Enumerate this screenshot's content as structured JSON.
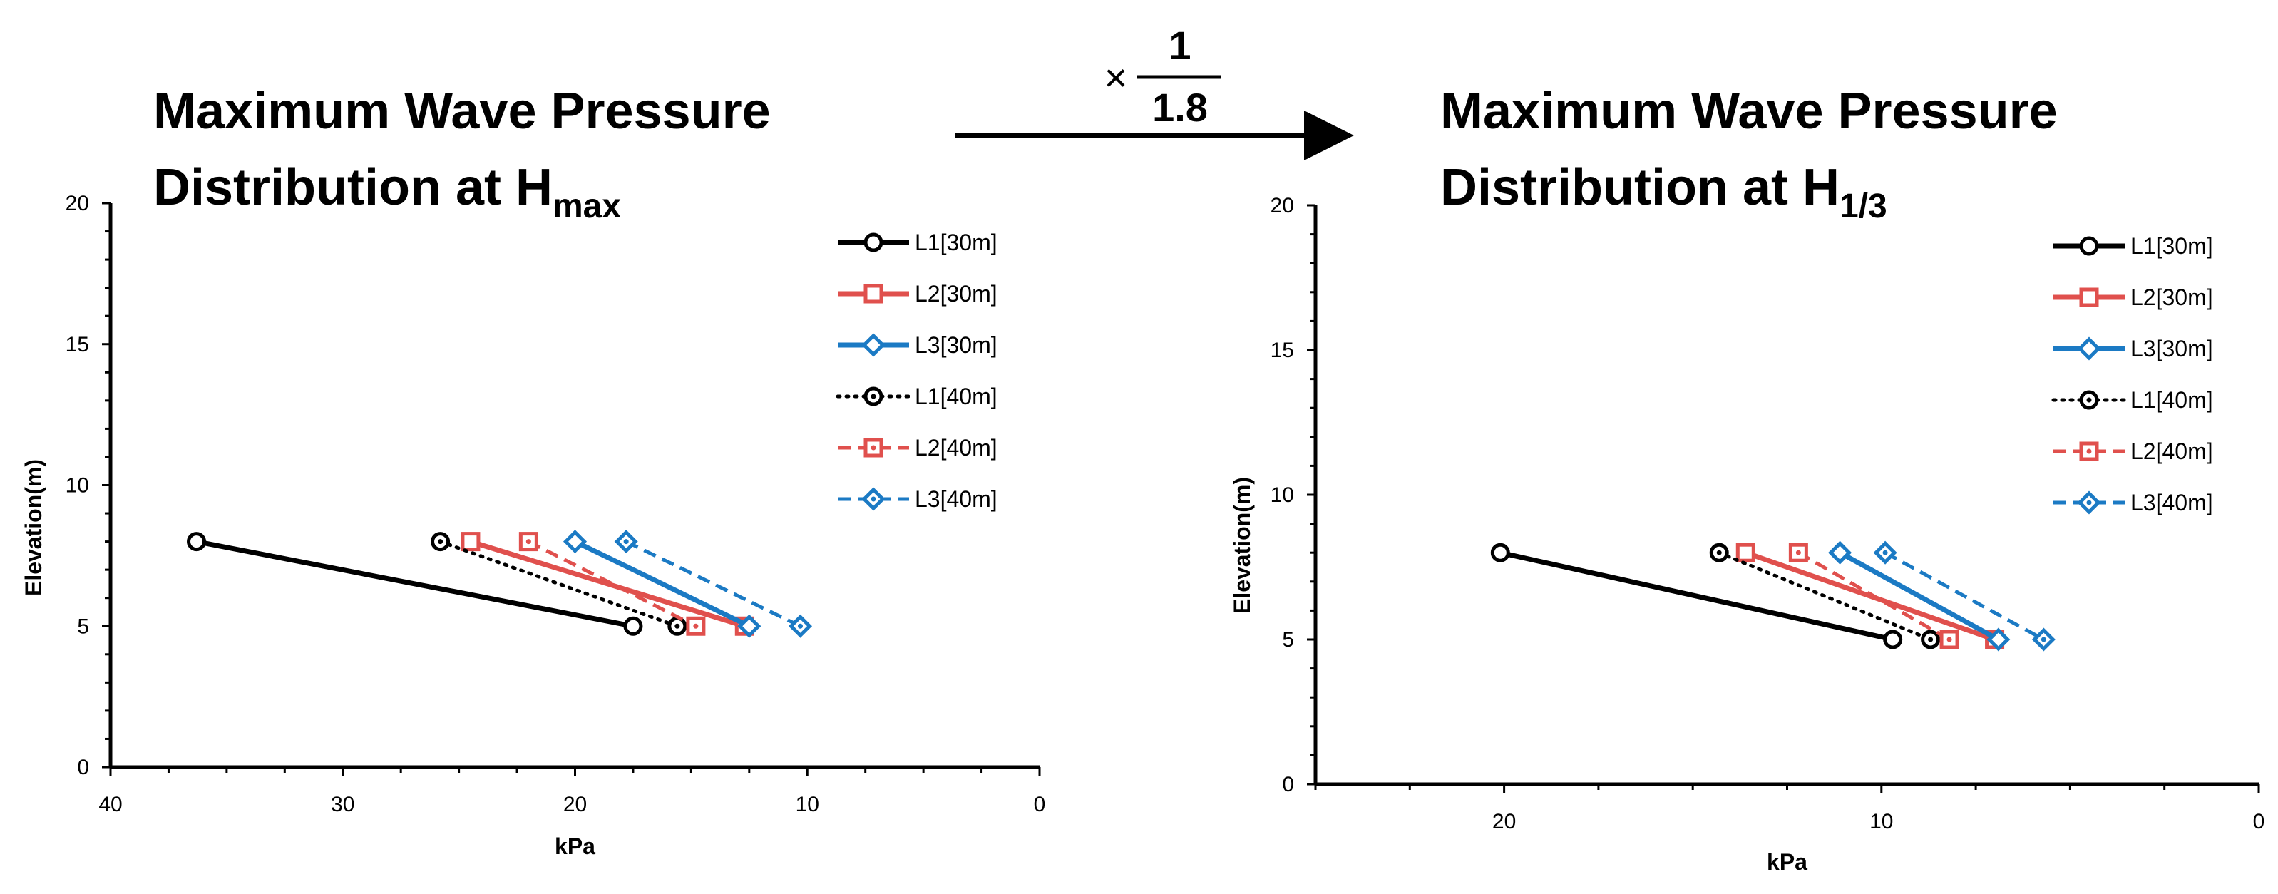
{
  "header": {
    "left_title_line1": "Maximum Wave Pressure",
    "left_title_line2_prefix": "Distribution at H",
    "left_title_line2_sub": "max",
    "right_title_line1": "Maximum Wave Pressure",
    "right_title_line2_prefix": "Distribution at H",
    "right_title_line2_sub": "1/3",
    "arrow_factor_symbol": "×",
    "arrow_numerator": "1",
    "arrow_denominator": "1.8"
  },
  "colors": {
    "L1": "#000000",
    "L2": "#e0504d",
    "L3": "#1b7ac4"
  },
  "chart_data": [
    {
      "type": "line",
      "name": "Hmax",
      "xlabel": "kPa",
      "ylabel": "Elevation(m)",
      "xlim": [
        40,
        0
      ],
      "x_reversed": true,
      "ylim": [
        0,
        20
      ],
      "xticks": [
        40,
        30,
        20,
        10,
        0
      ],
      "yticks": [
        0,
        5,
        10,
        15,
        20
      ],
      "legend_position": "top-right",
      "series": [
        {
          "name": "L1[30m]",
          "color_key": "L1",
          "dash": "solid",
          "marker": "circle",
          "x": [
            36.3,
            17.5
          ],
          "y": [
            8,
            5
          ]
        },
        {
          "name": "L2[30m]",
          "color_key": "L2",
          "dash": "solid",
          "marker": "square",
          "x": [
            24.5,
            12.7
          ],
          "y": [
            8,
            5
          ]
        },
        {
          "name": "L3[30m]",
          "color_key": "L3",
          "dash": "solid",
          "marker": "diamond",
          "x": [
            20.0,
            12.5
          ],
          "y": [
            8,
            5
          ]
        },
        {
          "name": "L1[40m]",
          "color_key": "L1",
          "dash": "dotted",
          "marker": "circle-dot",
          "x": [
            25.8,
            15.6
          ],
          "y": [
            8,
            5
          ]
        },
        {
          "name": "L2[40m]",
          "color_key": "L2",
          "dash": "dashed",
          "marker": "square-dot",
          "x": [
            22.0,
            14.8
          ],
          "y": [
            8,
            5
          ]
        },
        {
          "name": "L3[40m]",
          "color_key": "L3",
          "dash": "dashed",
          "marker": "diamond-dot",
          "x": [
            17.8,
            10.3
          ],
          "y": [
            8,
            5
          ]
        }
      ]
    },
    {
      "type": "line",
      "name": "H1/3",
      "xlabel": "kPa",
      "ylabel": "Elevation(m)",
      "xlim": [
        25,
        0
      ],
      "x_reversed": true,
      "ylim": [
        0,
        20
      ],
      "xticks": [
        20,
        10,
        0
      ],
      "yticks": [
        0,
        5,
        10,
        15,
        20
      ],
      "legend_position": "top-right",
      "series": [
        {
          "name": "L1[30m]",
          "color_key": "L1",
          "dash": "solid",
          "marker": "circle",
          "x": [
            20.1,
            9.7
          ],
          "y": [
            8,
            5
          ]
        },
        {
          "name": "L2[30m]",
          "color_key": "L2",
          "dash": "solid",
          "marker": "square",
          "x": [
            13.6,
            7.0
          ],
          "y": [
            8,
            5
          ]
        },
        {
          "name": "L3[30m]",
          "color_key": "L3",
          "dash": "solid",
          "marker": "diamond",
          "x": [
            11.1,
            6.9
          ],
          "y": [
            8,
            5
          ]
        },
        {
          "name": "L1[40m]",
          "color_key": "L1",
          "dash": "dotted",
          "marker": "circle-dot",
          "x": [
            14.3,
            8.7
          ],
          "y": [
            8,
            5
          ]
        },
        {
          "name": "L2[40m]",
          "color_key": "L2",
          "dash": "dashed",
          "marker": "square-dot",
          "x": [
            12.2,
            8.2
          ],
          "y": [
            8,
            5
          ]
        },
        {
          "name": "L3[40m]",
          "color_key": "L3",
          "dash": "dashed",
          "marker": "diamond-dot",
          "x": [
            9.9,
            5.7
          ],
          "y": [
            8,
            5
          ]
        }
      ]
    }
  ]
}
